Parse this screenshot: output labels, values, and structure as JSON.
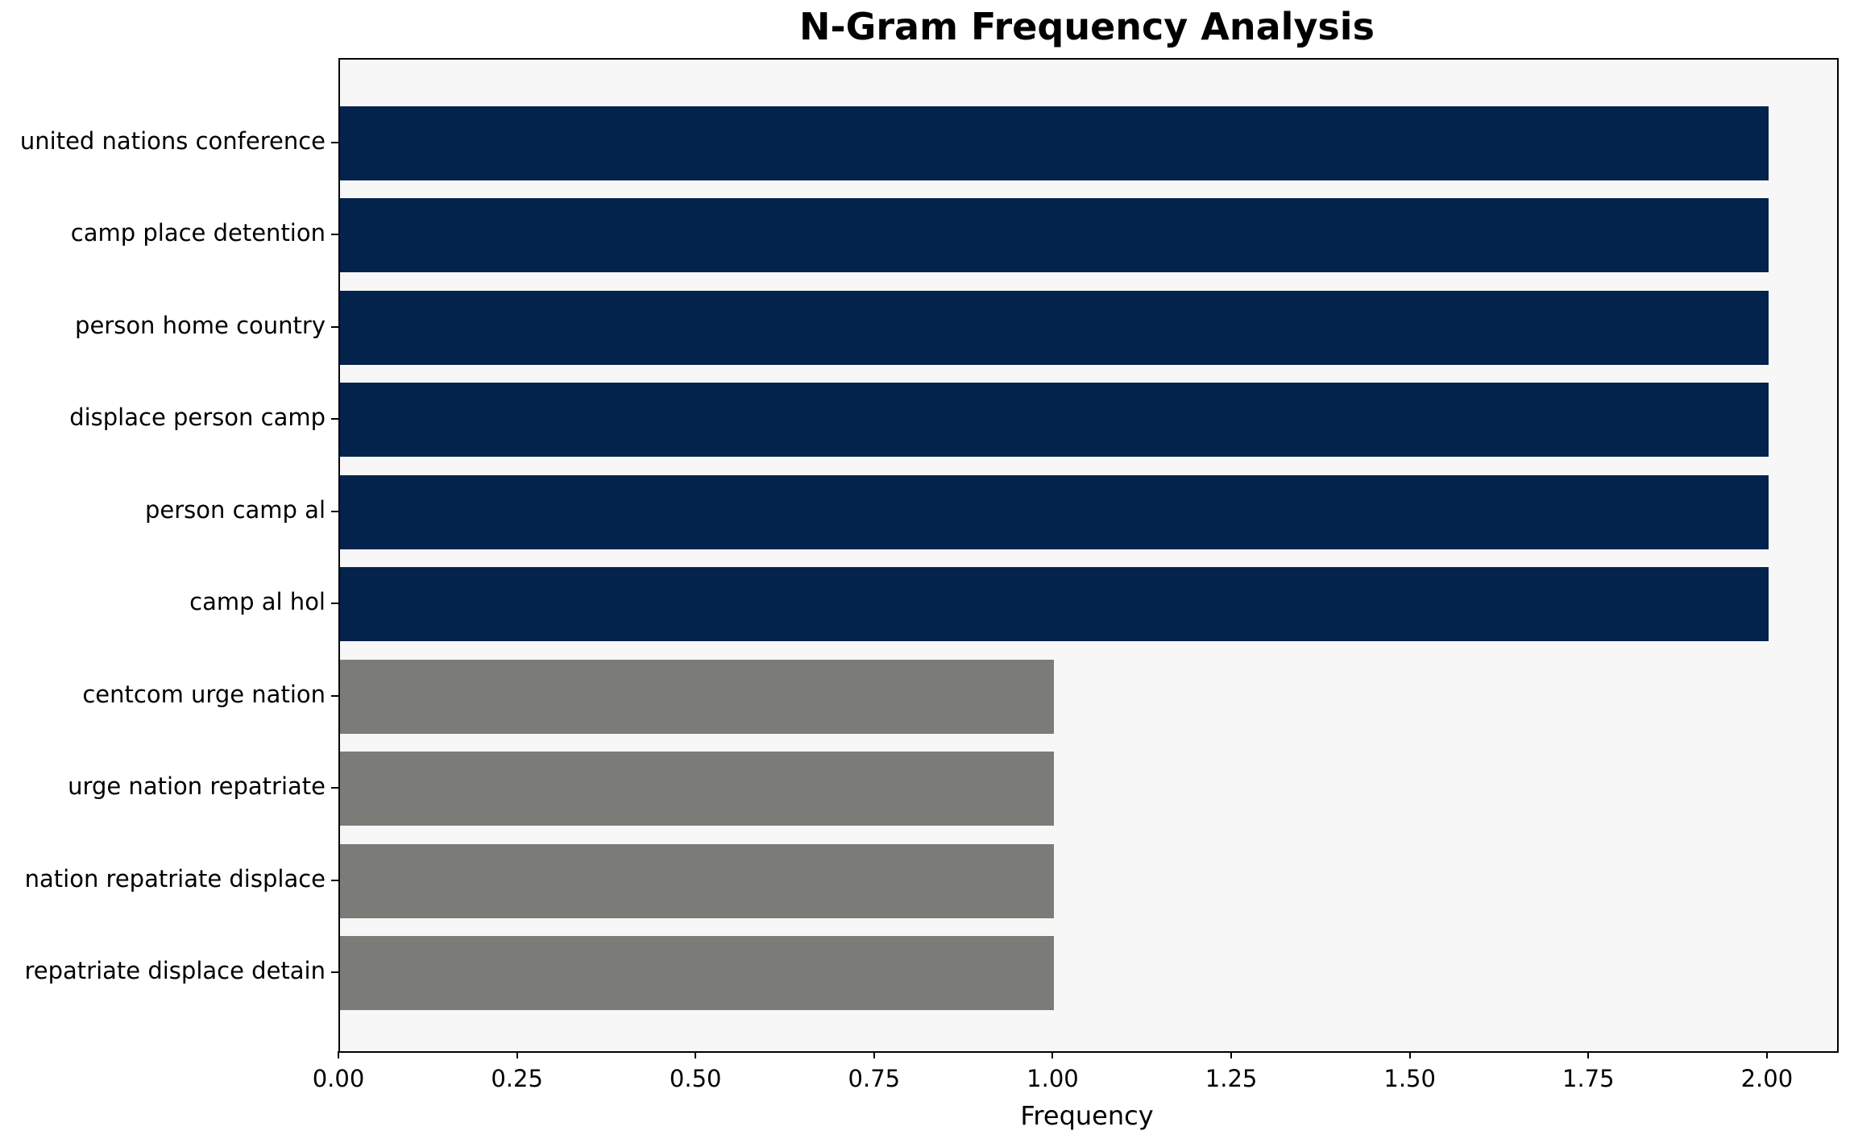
{
  "chart_data": {
    "type": "bar",
    "orientation": "horizontal",
    "title": "N-Gram Frequency Analysis",
    "xlabel": "Frequency",
    "ylabel": "",
    "categories": [
      "united nations conference",
      "camp place detention",
      "person home country",
      "displace person camp",
      "person camp al",
      "camp al hol",
      "centcom urge nation",
      "urge nation repatriate",
      "nation repatriate displace",
      "repatriate displace detain"
    ],
    "values": [
      2,
      2,
      2,
      2,
      2,
      2,
      1,
      1,
      1,
      1
    ],
    "bar_colors": [
      "#03224c",
      "#03224c",
      "#03224c",
      "#03224c",
      "#03224c",
      "#03224c",
      "#7b7b78",
      "#7b7b78",
      "#7b7b78",
      "#7b7b78"
    ],
    "xlim": [
      0,
      2.096
    ],
    "xticks": [
      0,
      0.25,
      0.5,
      0.75,
      1.0,
      1.25,
      1.5,
      1.75,
      2.0
    ],
    "xtick_labels": [
      "0.00",
      "0.25",
      "0.50",
      "0.75",
      "1.00",
      "1.25",
      "1.50",
      "1.75",
      "2.00"
    ],
    "grid": false,
    "legend": null,
    "colors": {
      "high_frequency_bar": "#03224c",
      "low_frequency_bar": "#7b7b78",
      "plot_background": "#f7f7f7",
      "axis": "#000000"
    }
  }
}
